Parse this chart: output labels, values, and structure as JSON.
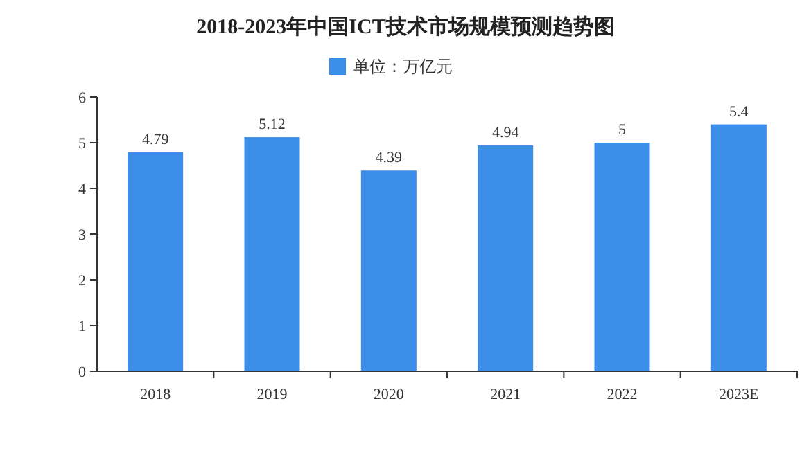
{
  "chart_data": {
    "type": "bar",
    "title": "2018-2023年中国ICT技术市场规模预测趋势图",
    "categories": [
      "2018",
      "2019",
      "2020",
      "2021",
      "2022",
      "2023E"
    ],
    "series": [
      {
        "name": "单位：万亿元",
        "color": "#3d8ee8",
        "values": [
          4.79,
          5.12,
          4.39,
          4.94,
          5,
          5.4
        ]
      }
    ],
    "ylim": [
      0,
      6
    ],
    "yticks": [
      0,
      1,
      2,
      3,
      4,
      5,
      6
    ],
    "data_labels": true,
    "legend": "top",
    "grid": false
  }
}
